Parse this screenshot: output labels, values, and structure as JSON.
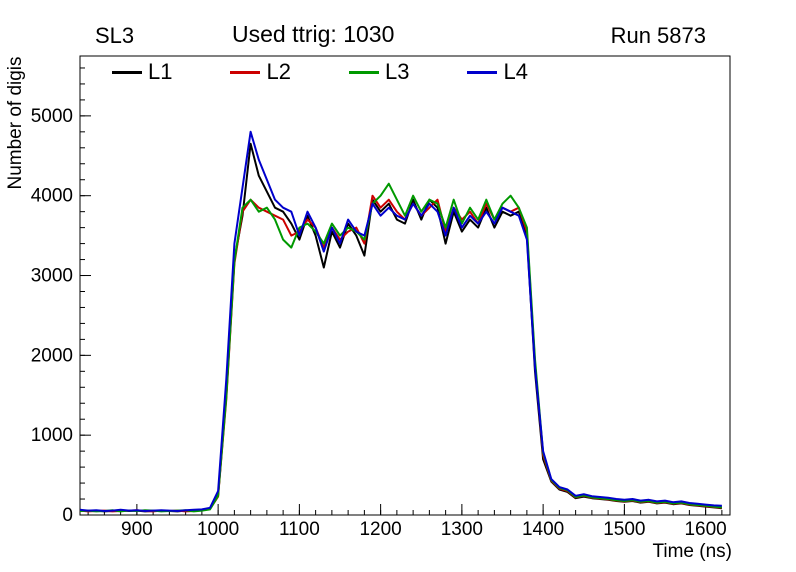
{
  "header": {
    "left": "SL3",
    "center": "Used ttrig: 1030",
    "right": "Run 5873"
  },
  "chart_data": {
    "type": "line",
    "title": "Used ttrig: 1030",
    "xlabel": "Time (ns)",
    "ylabel": "Number of digis",
    "xlim": [
      830,
      1630
    ],
    "ylim": [
      0,
      5750
    ],
    "xticks": [
      900,
      1000,
      1100,
      1200,
      1300,
      1400,
      1500,
      1600
    ],
    "yticks": [
      0,
      1000,
      2000,
      3000,
      4000,
      5000
    ],
    "x_minor_step": 20,
    "y_minor_step": 200,
    "grid": false,
    "legend_position": "top-inside-horizontal",
    "x": [
      830,
      840,
      850,
      860,
      870,
      880,
      890,
      900,
      910,
      920,
      930,
      940,
      950,
      960,
      970,
      980,
      990,
      1000,
      1010,
      1020,
      1030,
      1040,
      1050,
      1060,
      1070,
      1080,
      1090,
      1100,
      1110,
      1120,
      1130,
      1140,
      1150,
      1160,
      1170,
      1180,
      1190,
      1200,
      1210,
      1220,
      1230,
      1240,
      1250,
      1260,
      1270,
      1280,
      1290,
      1300,
      1310,
      1320,
      1330,
      1340,
      1350,
      1360,
      1370,
      1380,
      1390,
      1400,
      1410,
      1420,
      1430,
      1440,
      1450,
      1460,
      1470,
      1480,
      1490,
      1500,
      1510,
      1520,
      1530,
      1540,
      1550,
      1560,
      1570,
      1580,
      1590,
      1600,
      1610,
      1620
    ],
    "series": [
      {
        "name": "L1",
        "color": "#000000",
        "values": [
          60,
          50,
          55,
          45,
          50,
          60,
          50,
          55,
          45,
          50,
          55,
          50,
          45,
          55,
          60,
          65,
          80,
          250,
          1500,
          3200,
          3750,
          4650,
          4250,
          4050,
          3850,
          3800,
          3650,
          3450,
          3750,
          3500,
          3100,
          3550,
          3350,
          3650,
          3500,
          3250,
          3950,
          3800,
          3900,
          3700,
          3650,
          3950,
          3700,
          3950,
          3850,
          3400,
          3800,
          3550,
          3700,
          3600,
          3850,
          3600,
          3800,
          3750,
          3800,
          3500,
          1800,
          700,
          420,
          320,
          290,
          210,
          230,
          210,
          200,
          190,
          175,
          165,
          175,
          155,
          165,
          145,
          155,
          135,
          145,
          125,
          115,
          105,
          95,
          85
        ]
      },
      {
        "name": "L2",
        "color": "#cc0000",
        "values": [
          55,
          45,
          50,
          55,
          45,
          50,
          55,
          60,
          50,
          45,
          55,
          50,
          55,
          45,
          50,
          60,
          75,
          230,
          1450,
          3150,
          3800,
          3950,
          3850,
          3800,
          3750,
          3700,
          3500,
          3550,
          3700,
          3600,
          3350,
          3600,
          3450,
          3550,
          3600,
          3400,
          4000,
          3850,
          3950,
          3800,
          3700,
          3900,
          3750,
          3850,
          3950,
          3550,
          3850,
          3700,
          3800,
          3650,
          3900,
          3700,
          3850,
          3800,
          3850,
          3550,
          1900,
          750,
          430,
          330,
          300,
          220,
          240,
          215,
          205,
          195,
          180,
          170,
          180,
          160,
          170,
          150,
          160,
          140,
          150,
          130,
          120,
          110,
          100,
          90
        ]
      },
      {
        "name": "L3",
        "color": "#009900",
        "values": [
          50,
          55,
          45,
          50,
          60,
          45,
          55,
          50,
          60,
          55,
          45,
          50,
          55,
          60,
          45,
          55,
          70,
          240,
          1480,
          3180,
          3850,
          3950,
          3800,
          3850,
          3700,
          3450,
          3350,
          3600,
          3650,
          3550,
          3400,
          3650,
          3500,
          3600,
          3550,
          3450,
          3900,
          4000,
          4150,
          3950,
          3750,
          4000,
          3800,
          3950,
          3900,
          3600,
          3950,
          3650,
          3850,
          3700,
          3950,
          3700,
          3900,
          4000,
          3850,
          3600,
          1950,
          780,
          440,
          340,
          310,
          225,
          245,
          220,
          210,
          200,
          185,
          175,
          185,
          165,
          175,
          155,
          165,
          145,
          155,
          135,
          125,
          115,
          105,
          95
        ]
      },
      {
        "name": "L4",
        "color": "#0000cc",
        "values": [
          65,
          55,
          60,
          50,
          55,
          65,
          55,
          60,
          50,
          55,
          60,
          55,
          50,
          60,
          65,
          70,
          90,
          300,
          1700,
          3400,
          4100,
          4800,
          4450,
          4200,
          3950,
          3850,
          3800,
          3500,
          3800,
          3600,
          3300,
          3600,
          3400,
          3700,
          3550,
          3500,
          3900,
          3750,
          3850,
          3750,
          3700,
          3900,
          3750,
          3900,
          3800,
          3500,
          3850,
          3600,
          3750,
          3650,
          3800,
          3650,
          3850,
          3800,
          3750,
          3450,
          1850,
          800,
          450,
          350,
          320,
          240,
          260,
          235,
          225,
          215,
          200,
          190,
          200,
          180,
          190,
          170,
          180,
          160,
          170,
          150,
          140,
          130,
          120,
          115
        ]
      }
    ]
  }
}
